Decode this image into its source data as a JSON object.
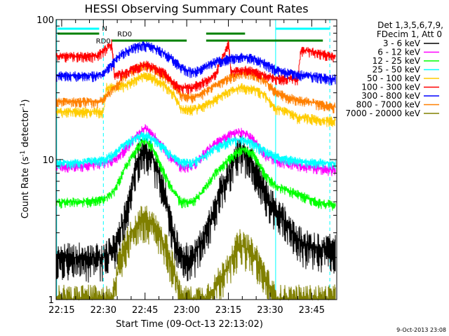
{
  "chart_data": {
    "type": "line",
    "title": "HESSI Observing Summary Count Rates",
    "xlabel": "Start Time (09-Oct-13 22:13:02)",
    "ylabel": "Count Rate (s⁻¹ detector⁻¹)",
    "x_tick_labels": [
      "22:15",
      "22:30",
      "22:45",
      "23:00",
      "23:15",
      "23:30",
      "23:45"
    ],
    "x_ticks_minutes": [
      15,
      30,
      45,
      60,
      75,
      90,
      105
    ],
    "xlim_minutes_after_22_00": [
      13.0,
      114.0
    ],
    "y_scale": "log",
    "ylim": [
      1,
      100
    ],
    "y_tick_labels": [
      "1",
      "10",
      "100"
    ],
    "y_tick_values": [
      1,
      10,
      100
    ],
    "grid": false,
    "legend_placement": "top-right",
    "legend_header": [
      "Det 1,3,5,6,7,9,",
      "FDecim 1, Att 0"
    ],
    "series": [
      {
        "name": "3 - 6 keV",
        "color": "#000000",
        "points": [
          [
            13,
            2.0
          ],
          [
            20,
            2.0
          ],
          [
            30,
            2.0
          ],
          [
            34,
            2.3
          ],
          [
            38,
            4.0
          ],
          [
            42,
            10.0
          ],
          [
            45,
            12.0
          ],
          [
            48,
            10.0
          ],
          [
            52,
            6.0
          ],
          [
            55,
            3.0
          ],
          [
            58,
            2.0
          ],
          [
            62,
            2.0
          ],
          [
            65,
            2.5
          ],
          [
            68,
            3.5
          ],
          [
            72,
            6.0
          ],
          [
            75,
            8.0
          ],
          [
            79,
            12.0
          ],
          [
            83,
            10.0
          ],
          [
            87,
            7.0
          ],
          [
            90,
            5.0
          ],
          [
            94,
            4.0
          ],
          [
            98,
            3.0
          ],
          [
            102,
            2.5
          ],
          [
            106,
            2.4
          ],
          [
            112,
            2.3
          ]
        ]
      },
      {
        "name": "6 - 12 keV",
        "color": "#ff00ff",
        "points": [
          [
            13,
            9.0
          ],
          [
            22,
            9.0
          ],
          [
            30,
            9.5
          ],
          [
            34,
            10.0
          ],
          [
            38,
            12.0
          ],
          [
            42,
            15.0
          ],
          [
            45,
            17.0
          ],
          [
            48,
            15.0
          ],
          [
            52,
            12.0
          ],
          [
            55,
            10.0
          ],
          [
            58,
            9.0
          ],
          [
            62,
            9.0
          ],
          [
            66,
            11.0
          ],
          [
            70,
            13.0
          ],
          [
            75,
            15.0
          ],
          [
            80,
            16.0
          ],
          [
            84,
            14.0
          ],
          [
            88,
            11.0
          ],
          [
            92,
            10.0
          ],
          [
            97,
            9.5
          ],
          [
            102,
            9.0
          ],
          [
            107,
            8.8
          ],
          [
            112,
            8.5
          ]
        ]
      },
      {
        "name": "12 - 25 keV",
        "color": "#00ff00",
        "points": [
          [
            13,
            5.0
          ],
          [
            22,
            5.0
          ],
          [
            30,
            5.2
          ],
          [
            34,
            6.0
          ],
          [
            38,
            9.0
          ],
          [
            42,
            12.0
          ],
          [
            45,
            14.0
          ],
          [
            48,
            12.0
          ],
          [
            52,
            8.0
          ],
          [
            55,
            6.0
          ],
          [
            58,
            5.0
          ],
          [
            62,
            5.0
          ],
          [
            66,
            6.0
          ],
          [
            70,
            8.0
          ],
          [
            75,
            10.0
          ],
          [
            80,
            12.0
          ],
          [
            84,
            11.0
          ],
          [
            88,
            8.0
          ],
          [
            92,
            6.5
          ],
          [
            97,
            6.0
          ],
          [
            102,
            5.5
          ],
          [
            107,
            5.0
          ],
          [
            112,
            4.8
          ]
        ]
      },
      {
        "name": "25 - 50 keV",
        "color": "#00ffff",
        "points": [
          [
            13,
            9.5
          ],
          [
            22,
            9.5
          ],
          [
            30,
            10.0
          ],
          [
            34,
            11.0
          ],
          [
            38,
            13.0
          ],
          [
            42,
            14.5
          ],
          [
            45,
            15.0
          ],
          [
            48,
            14.0
          ],
          [
            52,
            12.0
          ],
          [
            55,
            10.5
          ],
          [
            58,
            9.5
          ],
          [
            62,
            9.5
          ],
          [
            66,
            10.5
          ],
          [
            70,
            12.0
          ],
          [
            75,
            13.5
          ],
          [
            80,
            14.0
          ],
          [
            84,
            13.0
          ],
          [
            88,
            11.5
          ],
          [
            92,
            10.5
          ],
          [
            97,
            10.0
          ],
          [
            102,
            9.8
          ],
          [
            107,
            9.5
          ],
          [
            112,
            9.5
          ]
        ]
      },
      {
        "name": "50 - 100 keV",
        "color": "#ffcc00",
        "points": [
          [
            13,
            22.0
          ],
          [
            22,
            22.0
          ],
          [
            30,
            22.0
          ],
          [
            31,
            33.0
          ],
          [
            35,
            33.0
          ],
          [
            38,
            34.0
          ],
          [
            42,
            38.0
          ],
          [
            45,
            40.0
          ],
          [
            48,
            38.0
          ],
          [
            52,
            34.0
          ],
          [
            55,
            30.0
          ],
          [
            58,
            23.0
          ],
          [
            62,
            23.0
          ],
          [
            66,
            24.0
          ],
          [
            70,
            27.0
          ],
          [
            75,
            31.0
          ],
          [
            80,
            33.0
          ],
          [
            84,
            32.0
          ],
          [
            88,
            29.0
          ],
          [
            92,
            23.0
          ],
          [
            97,
            22.0
          ],
          [
            100,
            20.0
          ],
          [
            104,
            20.0
          ],
          [
            108,
            19.0
          ],
          [
            112,
            19.0
          ]
        ]
      },
      {
        "name": "100 - 300 keV",
        "color": "#ff0000",
        "points": [
          [
            13,
            55.0
          ],
          [
            22,
            55.0
          ],
          [
            28,
            55.0
          ],
          [
            29,
            58.0
          ],
          [
            31,
            62.0
          ],
          [
            33,
            68.0
          ],
          [
            34,
            40.0
          ],
          [
            38,
            42.0
          ],
          [
            42,
            46.0
          ],
          [
            45,
            48.0
          ],
          [
            48,
            46.0
          ],
          [
            52,
            42.0
          ],
          [
            55,
            36.0
          ],
          [
            58,
            33.0
          ],
          [
            62,
            33.0
          ],
          [
            66,
            36.0
          ],
          [
            70,
            40.0
          ],
          [
            74,
            60.0
          ],
          [
            75,
            70.0
          ],
          [
            76,
            42.0
          ],
          [
            80,
            44.0
          ],
          [
            84,
            43.0
          ],
          [
            88,
            40.0
          ],
          [
            92,
            38.0
          ],
          [
            98,
            38.0
          ],
          [
            100,
            38.0
          ],
          [
            101,
            60.0
          ],
          [
            104,
            60.0
          ],
          [
            108,
            58.0
          ],
          [
            112,
            55.0
          ]
        ]
      },
      {
        "name": "300 - 800 keV",
        "color": "#0000ff",
        "points": [
          [
            13,
            40.0
          ],
          [
            22,
            40.0
          ],
          [
            28,
            40.0
          ],
          [
            30,
            41.0
          ],
          [
            33,
            48.0
          ],
          [
            36,
            56.0
          ],
          [
            40,
            62.0
          ],
          [
            44,
            66.0
          ],
          [
            48,
            64.0
          ],
          [
            52,
            58.0
          ],
          [
            55,
            52.0
          ],
          [
            58,
            46.0
          ],
          [
            62,
            42.0
          ],
          [
            66,
            45.0
          ],
          [
            70,
            50.0
          ],
          [
            75,
            53.0
          ],
          [
            80,
            55.0
          ],
          [
            84,
            53.0
          ],
          [
            88,
            49.0
          ],
          [
            92,
            44.0
          ],
          [
            96,
            42.0
          ],
          [
            100,
            41.0
          ],
          [
            104,
            40.0
          ],
          [
            108,
            39.0
          ],
          [
            112,
            38.0
          ]
        ]
      },
      {
        "name": "800 - 7000 keV",
        "color": "#ff8000",
        "points": [
          [
            13,
            26.0
          ],
          [
            22,
            26.0
          ],
          [
            28,
            26.0
          ],
          [
            30,
            27.0
          ],
          [
            34,
            33.0
          ],
          [
            38,
            40.0
          ],
          [
            42,
            45.0
          ],
          [
            45,
            47.0
          ],
          [
            48,
            45.0
          ],
          [
            52,
            40.0
          ],
          [
            55,
            35.0
          ],
          [
            58,
            29.0
          ],
          [
            62,
            28.0
          ],
          [
            66,
            30.0
          ],
          [
            70,
            34.0
          ],
          [
            75,
            38.0
          ],
          [
            80,
            42.0
          ],
          [
            84,
            41.0
          ],
          [
            88,
            37.0
          ],
          [
            92,
            31.0
          ],
          [
            96,
            28.0
          ],
          [
            100,
            27.0
          ],
          [
            104,
            26.0
          ],
          [
            108,
            25.0
          ],
          [
            112,
            24.0
          ]
        ]
      },
      {
        "name": "7000 - 20000 keV",
        "color": "#808000",
        "points": [
          [
            13,
            1.0
          ],
          [
            20,
            1.0
          ],
          [
            30,
            1.0
          ],
          [
            33,
            1.0
          ],
          [
            36,
            2.0
          ],
          [
            38,
            2.5
          ],
          [
            40,
            3.0
          ],
          [
            42,
            3.5
          ],
          [
            45,
            3.8
          ],
          [
            48,
            3.5
          ],
          [
            50,
            3.0
          ],
          [
            52,
            2.5
          ],
          [
            54,
            2.0
          ],
          [
            56,
            1.5
          ],
          [
            58,
            1.0
          ],
          [
            63,
            1.0
          ],
          [
            66,
            1.0
          ],
          [
            70,
            1.2
          ],
          [
            73,
            1.5
          ],
          [
            76,
            2.0
          ],
          [
            79,
            2.5
          ],
          [
            82,
            2.3
          ],
          [
            85,
            2.0
          ],
          [
            88,
            1.5
          ],
          [
            90,
            1.2
          ],
          [
            92,
            1.0
          ],
          [
            100,
            1.0
          ],
          [
            112,
            1.0
          ]
        ]
      }
    ],
    "annotations": [
      {
        "text": "N",
        "color": "#00ffff"
      },
      {
        "text": "RD0",
        "color": "#008000"
      },
      {
        "text": "RD0",
        "color": "#008000"
      }
    ]
  },
  "timestamp_label": "9-Oct-2013 23:08"
}
